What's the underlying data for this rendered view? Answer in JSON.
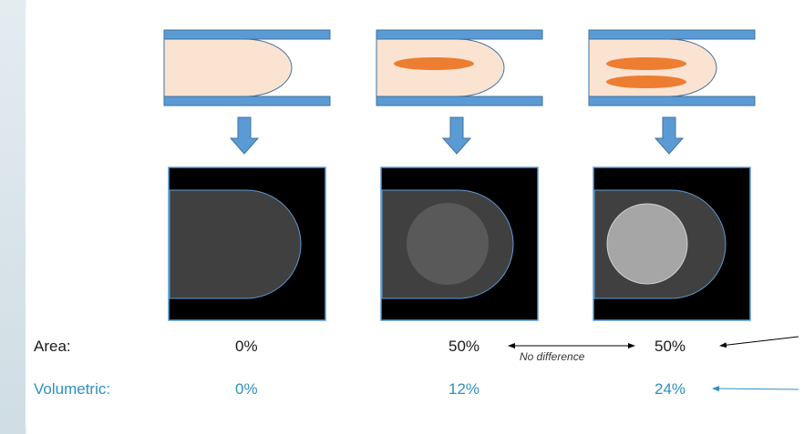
{
  "rows": {
    "area": {
      "label": "Area:",
      "values": [
        "0%",
        "50%",
        "50%"
      ]
    },
    "volumetric": {
      "label": "Volumetric:",
      "values": [
        "0%",
        "12%",
        "24%"
      ]
    }
  },
  "annotation": "No difference",
  "colors": {
    "tube": "#5b9bd5",
    "tissue": "#fbe3d2",
    "lesion": "#ed7d31",
    "arrow": "#5b9bd5",
    "image_background": "#000000",
    "tissue_gray": "#404040",
    "volumetric_text": "#2e8fbf"
  },
  "panels": [
    {
      "lesion_count": 0,
      "dense_level": 0
    },
    {
      "lesion_count": 1,
      "dense_level": 0.35
    },
    {
      "lesion_count": 2,
      "dense_level": 0.7
    }
  ]
}
